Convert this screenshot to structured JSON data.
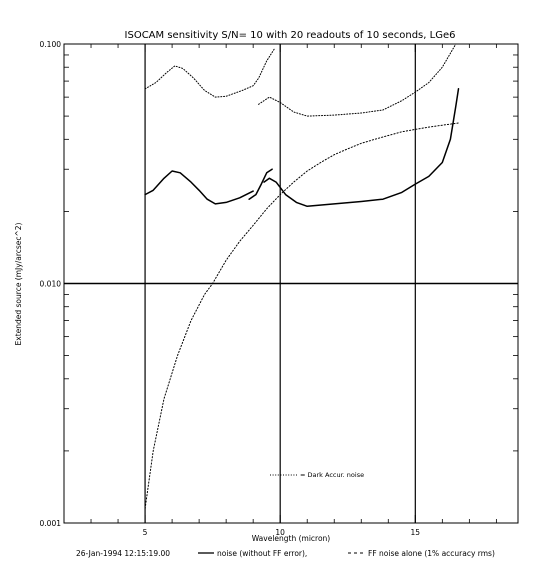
{
  "chart_data": {
    "type": "line",
    "title": "ISOCAM sensitivity S/N= 10 with 20 readouts of 10 seconds, LGe6",
    "xlabel": "Wavelength (micron)",
    "ylabel": "Extended source (mJy/arcsec^2)",
    "xlim": [
      2.0,
      18.8
    ],
    "ylim": [
      0.001,
      0.1
    ],
    "yscale": "log",
    "x_ticks": [
      5,
      10,
      15
    ],
    "x_tick_labels": [
      "5",
      "10",
      "15"
    ],
    "y_ticks": [
      0.001,
      0.01,
      0.1
    ],
    "y_tick_labels": [
      "0.001",
      "0.010",
      "0.100"
    ],
    "vertical_lines": [
      5,
      10,
      15
    ],
    "horizontal_lines": [
      0.01
    ],
    "legend_inside": "= Dark Accur. noise",
    "legend_inside_placement": "bottom-right",
    "footer_date": "26-Jan-1994 12:15:19.00",
    "footer_legend_solid": "noise (without FF error),",
    "footer_legend_dashed": "FF noise alone (1% accuracy rms)",
    "series": [
      {
        "name": "noise (without FF error)",
        "style": "solid",
        "segments": [
          [
            [
              5.0,
              0.0235
            ],
            [
              5.3,
              0.0245
            ],
            [
              5.7,
              0.0275
            ],
            [
              6.0,
              0.0295
            ],
            [
              6.3,
              0.029
            ],
            [
              6.7,
              0.0265
            ],
            [
              7.0,
              0.0245
            ],
            [
              7.3,
              0.0225
            ],
            [
              7.6,
              0.0215
            ],
            [
              8.0,
              0.0218
            ],
            [
              8.5,
              0.0228
            ],
            [
              9.0,
              0.0243
            ]
          ],
          [
            [
              8.85,
              0.0225
            ],
            [
              9.1,
              0.0235
            ],
            [
              9.3,
              0.026
            ],
            [
              9.5,
              0.029
            ],
            [
              9.7,
              0.03
            ]
          ],
          [
            [
              9.4,
              0.0265
            ],
            [
              9.6,
              0.0275
            ],
            [
              9.85,
              0.0265
            ],
            [
              10.2,
              0.0235
            ],
            [
              10.6,
              0.0218
            ],
            [
              11.0,
              0.021
            ],
            [
              12.0,
              0.0215
            ],
            [
              13.0,
              0.022
            ],
            [
              13.8,
              0.0225
            ],
            [
              14.5,
              0.024
            ],
            [
              15.0,
              0.026
            ],
            [
              15.5,
              0.028
            ],
            [
              16.0,
              0.032
            ],
            [
              16.3,
              0.04
            ],
            [
              16.5,
              0.055
            ],
            [
              16.6,
              0.065
            ]
          ]
        ]
      },
      {
        "name": "Dark Accur. noise",
        "style": "dotted",
        "segments": [
          [
            [
              5.0,
              0.065
            ],
            [
              5.4,
              0.069
            ],
            [
              5.8,
              0.076
            ],
            [
              6.1,
              0.081
            ],
            [
              6.4,
              0.079
            ],
            [
              6.8,
              0.072
            ],
            [
              7.2,
              0.064
            ],
            [
              7.6,
              0.06
            ],
            [
              8.0,
              0.0605
            ],
            [
              8.6,
              0.064
            ],
            [
              9.0,
              0.067
            ],
            [
              9.2,
              0.072
            ],
            [
              9.5,
              0.085
            ],
            [
              9.8,
              0.096
            ]
          ],
          [
            [
              9.2,
              0.056
            ],
            [
              9.6,
              0.06
            ],
            [
              10.0,
              0.057
            ],
            [
              10.5,
              0.052
            ],
            [
              11.0,
              0.05
            ],
            [
              12.0,
              0.0505
            ],
            [
              13.0,
              0.0515
            ],
            [
              13.8,
              0.053
            ],
            [
              14.5,
              0.058
            ],
            [
              15.0,
              0.063
            ],
            [
              15.5,
              0.069
            ],
            [
              16.0,
              0.08
            ],
            [
              16.5,
              0.1
            ]
          ]
        ]
      },
      {
        "name": "FF noise alone (1% accuracy rms)",
        "style": "dashed",
        "segments": [
          [
            [
              5.0,
              0.00115
            ],
            [
              5.3,
              0.002
            ],
            [
              5.7,
              0.0033
            ],
            [
              6.2,
              0.005
            ],
            [
              6.7,
              0.007
            ],
            [
              7.2,
              0.009
            ],
            [
              7.5,
              0.01
            ],
            [
              8.0,
              0.0125
            ],
            [
              8.5,
              0.015
            ],
            [
              9.0,
              0.0175
            ],
            [
              9.5,
              0.0205
            ],
            [
              10.0,
              0.0235
            ],
            [
              10.5,
              0.0265
            ],
            [
              11.0,
              0.0295
            ],
            [
              11.5,
              0.032
            ],
            [
              12.0,
              0.0345
            ],
            [
              12.5,
              0.0365
            ],
            [
              13.0,
              0.0385
            ],
            [
              13.5,
              0.04
            ],
            [
              14.0,
              0.0415
            ],
            [
              14.5,
              0.043
            ],
            [
              15.0,
              0.044
            ],
            [
              15.5,
              0.045
            ],
            [
              16.0,
              0.0458
            ],
            [
              16.6,
              0.0468
            ]
          ]
        ]
      }
    ]
  }
}
